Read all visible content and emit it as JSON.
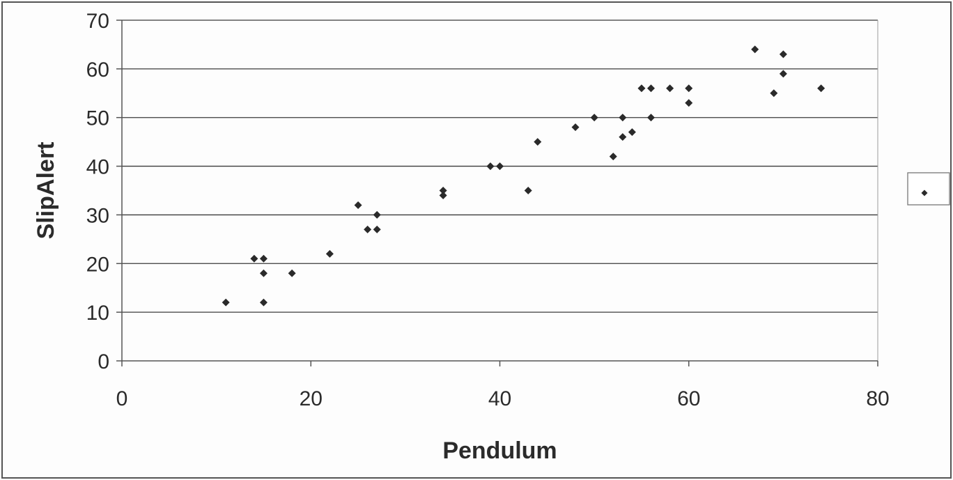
{
  "chart_data": {
    "type": "scatter",
    "title": "",
    "xlabel": "Pendulum",
    "ylabel": "SlipAlert",
    "xlim": [
      0,
      80
    ],
    "ylim": [
      0,
      70
    ],
    "x_ticks": [
      0,
      20,
      40,
      60,
      80
    ],
    "y_ticks": [
      0,
      10,
      20,
      30,
      40,
      50,
      60,
      70
    ],
    "grid": "horizontal",
    "legend": {
      "position": "right",
      "entries": [
        ""
      ]
    },
    "marker": "diamond",
    "colors": {
      "marker": "#2a2a2a",
      "grid": "#3a3a3a",
      "frame": "#555555"
    },
    "series": [
      {
        "points": [
          [
            11,
            12
          ],
          [
            14,
            21
          ],
          [
            15,
            21
          ],
          [
            15,
            18
          ],
          [
            15,
            12
          ],
          [
            18,
            18
          ],
          [
            22,
            22
          ],
          [
            25,
            32
          ],
          [
            26,
            27
          ],
          [
            27,
            27
          ],
          [
            27,
            30
          ],
          [
            34,
            35
          ],
          [
            34,
            34
          ],
          [
            39,
            40
          ],
          [
            40,
            40
          ],
          [
            43,
            35
          ],
          [
            44,
            45
          ],
          [
            48,
            48
          ],
          [
            50,
            50
          ],
          [
            52,
            42
          ],
          [
            53,
            50
          ],
          [
            53,
            46
          ],
          [
            54,
            47
          ],
          [
            55,
            56
          ],
          [
            56,
            56
          ],
          [
            56,
            50
          ],
          [
            58,
            56
          ],
          [
            60,
            56
          ],
          [
            60,
            53
          ],
          [
            67,
            64
          ],
          [
            69,
            55
          ],
          [
            70,
            63
          ],
          [
            70,
            59
          ],
          [
            74,
            56
          ]
        ]
      }
    ]
  }
}
